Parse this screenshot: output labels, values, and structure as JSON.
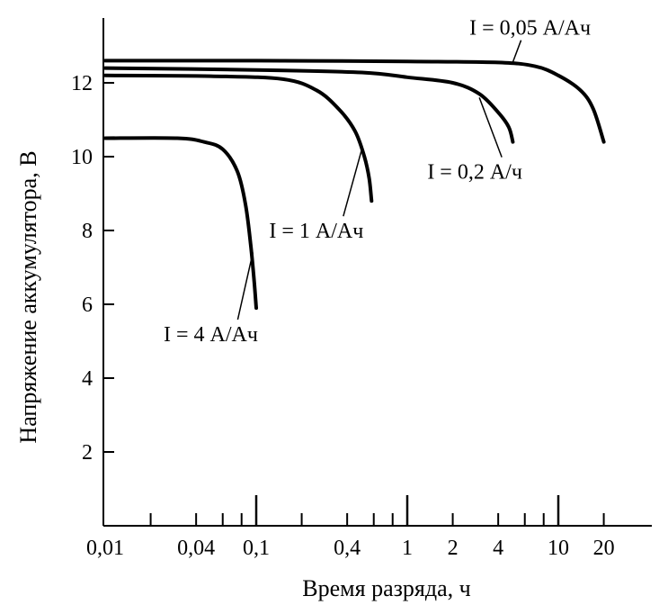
{
  "chart_data": {
    "type": "line",
    "xscale": "log",
    "xlim": [
      0.01,
      40
    ],
    "ylim": [
      0,
      13.5
    ],
    "xlabel": "Время разряда, ч",
    "ylabel": "Напряжение аккумулятора, В",
    "x_tick_labels": [
      {
        "value": 0.01,
        "label": "0,01"
      },
      {
        "value": 0.04,
        "label": "0,04"
      },
      {
        "value": 0.1,
        "label": "0,1"
      },
      {
        "value": 0.4,
        "label": "0,4"
      },
      {
        "value": 1,
        "label": "1"
      },
      {
        "value": 2,
        "label": "2"
      },
      {
        "value": 4,
        "label": "4"
      },
      {
        "value": 10,
        "label": "10"
      },
      {
        "value": 20,
        "label": "20"
      }
    ],
    "x_minor_ticks": [
      0.02,
      0.04,
      0.06,
      0.08,
      0.2,
      0.4,
      0.6,
      0.8,
      2,
      4,
      6,
      8,
      20
    ],
    "x_long_ticks": [
      0.1,
      1,
      10
    ],
    "y_ticks": [
      2,
      4,
      6,
      8,
      10,
      12
    ],
    "y_tick_labels": [
      "2",
      "4",
      "6",
      "8",
      "10",
      "12"
    ],
    "grid": false,
    "series": [
      {
        "name": "I = 0,05 А/Ач",
        "points": [
          [
            0.01,
            12.6
          ],
          [
            0.1,
            12.6
          ],
          [
            1,
            12.58
          ],
          [
            4,
            12.55
          ],
          [
            7,
            12.45
          ],
          [
            10,
            12.2
          ],
          [
            14,
            11.8
          ],
          [
            17,
            11.3
          ],
          [
            20,
            10.4
          ]
        ]
      },
      {
        "name": "I = 0,2 А/ч",
        "points": [
          [
            0.01,
            12.4
          ],
          [
            0.1,
            12.35
          ],
          [
            0.5,
            12.28
          ],
          [
            1,
            12.15
          ],
          [
            2,
            12.0
          ],
          [
            3,
            11.7
          ],
          [
            4,
            11.2
          ],
          [
            4.7,
            10.8
          ],
          [
            5,
            10.4
          ]
        ]
      },
      {
        "name": "I = 1 А/Ач",
        "points": [
          [
            0.01,
            12.2
          ],
          [
            0.05,
            12.18
          ],
          [
            0.15,
            12.1
          ],
          [
            0.25,
            11.8
          ],
          [
            0.35,
            11.3
          ],
          [
            0.45,
            10.7
          ],
          [
            0.52,
            10.0
          ],
          [
            0.56,
            9.4
          ],
          [
            0.58,
            8.8
          ]
        ]
      },
      {
        "name": "I = 4 А/Ач",
        "points": [
          [
            0.01,
            10.5
          ],
          [
            0.03,
            10.5
          ],
          [
            0.045,
            10.4
          ],
          [
            0.06,
            10.2
          ],
          [
            0.075,
            9.6
          ],
          [
            0.085,
            8.7
          ],
          [
            0.092,
            7.6
          ],
          [
            0.097,
            6.6
          ],
          [
            0.1,
            5.9
          ]
        ]
      }
    ],
    "annotations": [
      {
        "series": 0,
        "text": "I = 0,05 А/Ач",
        "x": 6.5,
        "y": 13.3,
        "pointer_x": 5.0,
        "pointer_y": 12.56
      },
      {
        "series": 1,
        "text": "I = 0,2 А/ч",
        "x": 2.8,
        "y": 9.4,
        "pointer_x": 3.0,
        "pointer_y": 11.6
      },
      {
        "series": 2,
        "text": "I = 1 А/Ач",
        "x": 0.25,
        "y": 7.8,
        "pointer_x": 0.5,
        "pointer_y": 10.2
      },
      {
        "series": 3,
        "text": "I = 4 А/Ач",
        "x": 0.05,
        "y": 5.0,
        "pointer_x": 0.095,
        "pointer_y": 7.4
      }
    ]
  }
}
